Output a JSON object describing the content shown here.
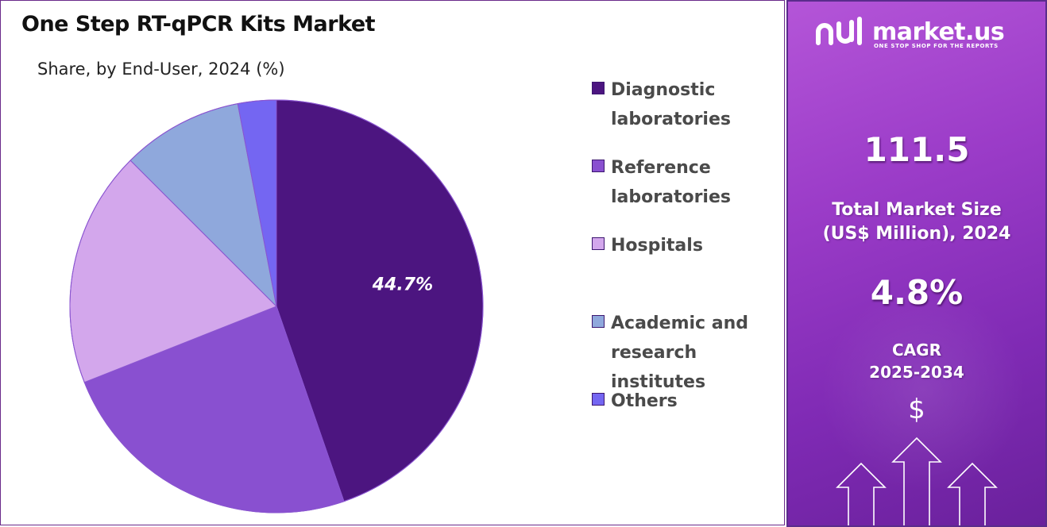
{
  "header": {
    "title": "One Step RT-qPCR Kits Market",
    "subtitle": "Share, by End-User, 2024 (%)"
  },
  "chart_data": {
    "type": "pie",
    "title": "One Step RT-qPCR Kits Market",
    "subtitle": "Share, by End-User, 2024 (%)",
    "categories": [
      "Diagnostic laboratories",
      "Reference laboratories",
      "Hospitals",
      "Academic and research institutes",
      "Others"
    ],
    "values": [
      44.7,
      24.3,
      18.5,
      9.5,
      3.0
    ],
    "colors": [
      "#4c1580",
      "#8950d0",
      "#d3a7ec",
      "#8fa8dc",
      "#7466f2"
    ],
    "data_labels": [
      "44.7%",
      "",
      "",
      "",
      ""
    ],
    "start_angle_deg": 0,
    "direction": "clockwise",
    "legend_position": "right"
  },
  "sidebar": {
    "brand_name": "market.us",
    "brand_tagline": "ONE STOP SHOP FOR THE REPORTS",
    "market_size_value": "111.5",
    "market_size_label_line1": "Total Market Size",
    "market_size_label_line2": "(US$ Million), 2024",
    "cagr_value": "4.8%",
    "cagr_label_line1": "CAGR",
    "cagr_label_line2": "2025-2034",
    "currency_symbol": "$",
    "icons": [
      "market-us-logo-icon",
      "dollar-icon",
      "arrow-up-icon"
    ],
    "accent_color": "#9b3cc8"
  }
}
